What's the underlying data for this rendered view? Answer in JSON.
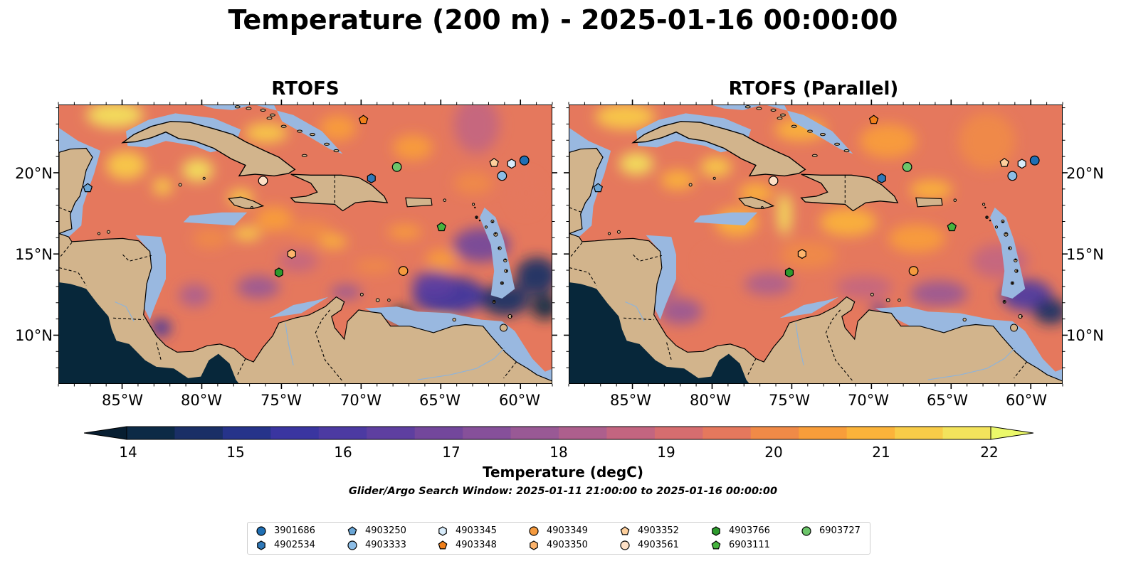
{
  "figure": {
    "title": "Temperature (200 m) - 2025-01-16 00:00:00",
    "search_window": "Glider/Argo Search Window: 2025-01-11 21:00:00 to 2025-01-16 00:00:00"
  },
  "panels": [
    {
      "title": "RTOFS"
    },
    {
      "title": "RTOFS (Parallel)"
    }
  ],
  "axes": {
    "lon_ticks": [
      "85°W",
      "80°W",
      "75°W",
      "70°W",
      "65°W",
      "60°W"
    ],
    "lat_ticks": [
      "20°N",
      "15°N",
      "10°N"
    ],
    "lon_range": [
      -89,
      -58
    ],
    "lat_range": [
      7,
      24.2
    ]
  },
  "colorbar": {
    "label": "Temperature (degC)",
    "ticks": [
      "14",
      "15",
      "16",
      "17",
      "18",
      "19",
      "20",
      "21",
      "22"
    ],
    "range": [
      14,
      22
    ],
    "step": 0.5,
    "extend": "both",
    "colors": [
      "#0c2a46",
      "#1a2f66",
      "#26338a",
      "#3a35a0",
      "#4c3aa2",
      "#5e3fa0",
      "#73479c",
      "#86509a",
      "#995995",
      "#ad5f8d",
      "#c36580",
      "#d66d6f",
      "#e5785d",
      "#f08a47",
      "#f89d3a",
      "#fbb33a",
      "#f8cc48",
      "#f3e35c"
    ],
    "under_color": "#071e31",
    "over_color": "#ebf86a"
  },
  "map_colors": {
    "land": "#d2b48c",
    "shallow": "#99b8e0",
    "deep_pacific": "#07273a",
    "coast": "#000000"
  },
  "legend": {
    "items": [
      {
        "id": "3901686",
        "marker": "circle",
        "color": "#1f6fb4"
      },
      {
        "id": "4902534",
        "marker": "hexagon",
        "color": "#2f78b8"
      },
      {
        "id": "4903250",
        "marker": "pentagon",
        "color": "#6aa6d6"
      },
      {
        "id": "4903333",
        "marker": "circle",
        "color": "#8cbde6"
      },
      {
        "id": "4903345",
        "marker": "hexagon",
        "color": "#d8ecfb"
      },
      {
        "id": "4903348",
        "marker": "pentagon",
        "color": "#f07f1a"
      },
      {
        "id": "4903349",
        "marker": "circle",
        "color": "#f59a3e"
      },
      {
        "id": "4903350",
        "marker": "hexagon",
        "color": "#fdb46c"
      },
      {
        "id": "4903352",
        "marker": "pentagon",
        "color": "#fdcf9c"
      },
      {
        "id": "4903561",
        "marker": "circle",
        "color": "#fde0c6"
      },
      {
        "id": "4903766",
        "marker": "hexagon",
        "color": "#2d9a2d"
      },
      {
        "id": "6903111",
        "marker": "pentagon",
        "color": "#46b33e"
      },
      {
        "id": "6903727",
        "marker": "circle",
        "color": "#6cc56a"
      }
    ]
  },
  "floats": [
    {
      "id": "3901686",
      "lon": -59.8,
      "lat": 20.8
    },
    {
      "id": "4902534",
      "lon": -69.4,
      "lat": 19.7
    },
    {
      "id": "4903250",
      "lon": -87.2,
      "lat": 19.1
    },
    {
      "id": "4903333",
      "lon": -61.2,
      "lat": 19.85
    },
    {
      "id": "4903345",
      "lon": -60.6,
      "lat": 20.6
    },
    {
      "id": "4903348",
      "lon": -69.9,
      "lat": 23.3
    },
    {
      "id": "4903349",
      "lon": -67.4,
      "lat": 14.0
    },
    {
      "id": "4903350",
      "lon": -74.4,
      "lat": 15.05
    },
    {
      "id": "4903352",
      "lon": -61.7,
      "lat": 20.65
    },
    {
      "id": "4903561",
      "lon": -76.2,
      "lat": 19.55
    },
    {
      "id": "4903766",
      "lon": -75.2,
      "lat": 13.9
    },
    {
      "id": "6903111",
      "lon": -65.0,
      "lat": 16.7
    },
    {
      "id": "6903727",
      "lon": -67.8,
      "lat": 20.4
    }
  ]
}
